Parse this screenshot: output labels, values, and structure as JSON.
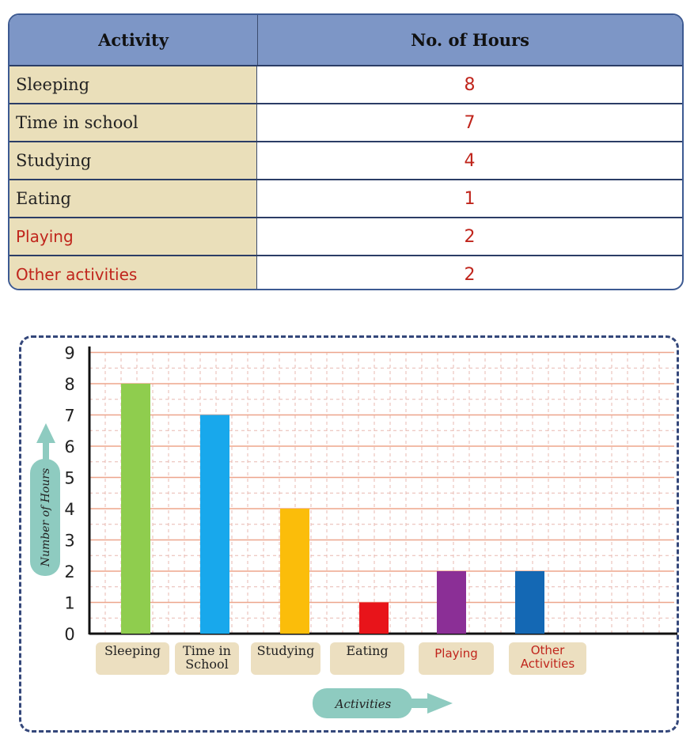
{
  "table": {
    "headers": [
      "Activity",
      "No. of Hours"
    ],
    "rows": [
      {
        "activity": "Sleeping",
        "hours": "8"
      },
      {
        "activity": "Time in school",
        "hours": "7"
      },
      {
        "activity": "Studying",
        "hours": "4"
      },
      {
        "activity": "Eating",
        "hours": "1"
      },
      {
        "activity": "Playing",
        "hours": "2"
      },
      {
        "activity": "Other activities",
        "hours": "2"
      }
    ]
  },
  "chart_data": {
    "type": "bar",
    "categories": [
      "Sleeping",
      "Time in School",
      "Studying",
      "Eating",
      "Playing",
      "Other Activities"
    ],
    "category_lines": [
      [
        "Sleeping"
      ],
      [
        "Time in",
        "School"
      ],
      [
        "Studying"
      ],
      [
        "Eating"
      ],
      [
        "Playing"
      ],
      [
        "Other",
        "Activities"
      ]
    ],
    "values": [
      8,
      7,
      4,
      1,
      2,
      2
    ],
    "colors": [
      "#8fcd4e",
      "#18a8ec",
      "#fbbd0a",
      "#e8141a",
      "#8b2f96",
      "#1468b4"
    ],
    "label_color_red": [
      false,
      false,
      false,
      false,
      true,
      true
    ],
    "xlabel": "Activities",
    "ylabel": "Number of Hours",
    "yticks": [
      0,
      1,
      2,
      3,
      4,
      5,
      6,
      7,
      8,
      9
    ],
    "ylim": [
      0,
      9
    ],
    "grid": true
  }
}
